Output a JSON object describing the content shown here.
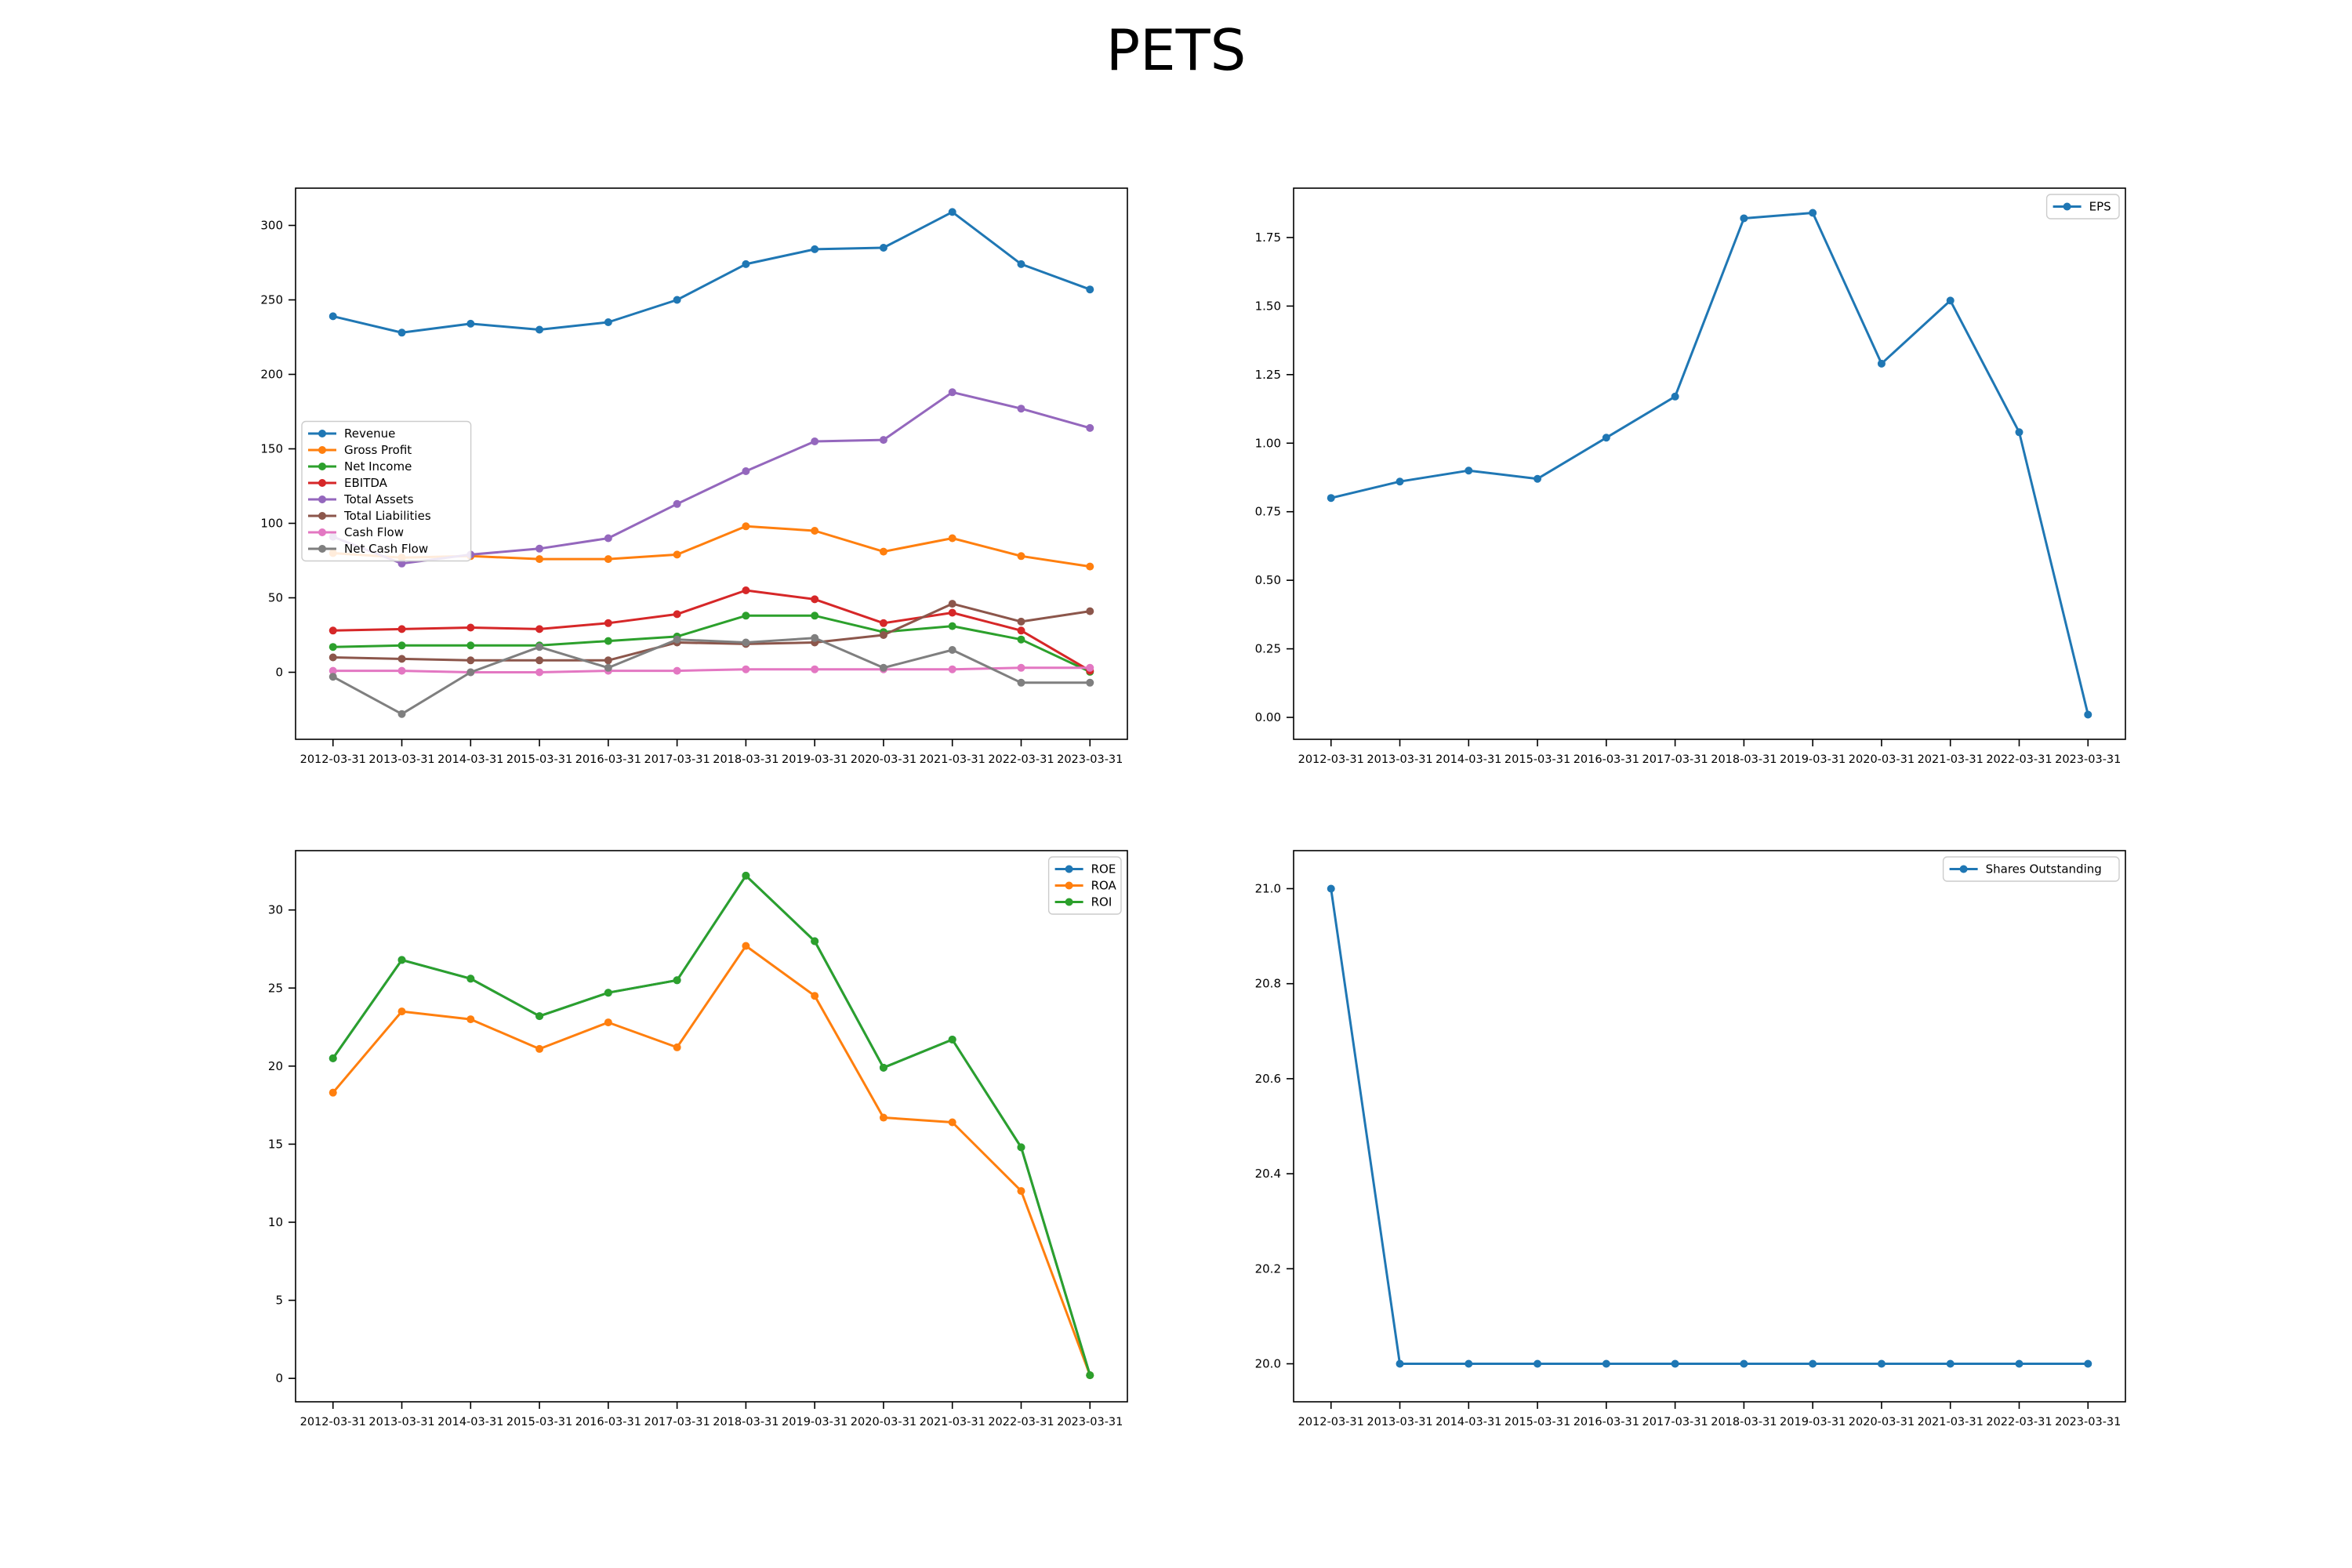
{
  "title": "PETS",
  "chart_data": [
    {
      "type": "line",
      "categories": [
        "2012-03-31",
        "2013-03-31",
        "2014-03-31",
        "2015-03-31",
        "2016-03-31",
        "2017-03-31",
        "2018-03-31",
        "2019-03-31",
        "2020-03-31",
        "2021-03-31",
        "2022-03-31",
        "2023-03-31"
      ],
      "ylim": [
        -45,
        325
      ],
      "yticks": [
        0,
        50,
        100,
        150,
        200,
        250,
        300
      ],
      "legend": "center-left",
      "series": [
        {
          "name": "Revenue",
          "color": "#1f77b4",
          "values": [
            239,
            228,
            234,
            230,
            235,
            250,
            274,
            284,
            285,
            309,
            274,
            257
          ]
        },
        {
          "name": "Gross Profit",
          "color": "#ff7f0e",
          "values": [
            80,
            77,
            78,
            76,
            76,
            79,
            98,
            95,
            81,
            90,
            78,
            71
          ]
        },
        {
          "name": "Net Income",
          "color": "#2ca02c",
          "values": [
            17,
            18,
            18,
            18,
            21,
            24,
            38,
            38,
            27,
            31,
            22,
            0.3
          ]
        },
        {
          "name": "EBITDA",
          "color": "#d62728",
          "values": [
            28,
            29,
            30,
            29,
            33,
            39,
            55,
            49,
            33,
            40,
            28,
            1
          ]
        },
        {
          "name": "Total Assets",
          "color": "#9467bd",
          "values": [
            91,
            73,
            79,
            83,
            90,
            113,
            135,
            155,
            156,
            188,
            177,
            164
          ]
        },
        {
          "name": "Total Liabilities",
          "color": "#8c564b",
          "values": [
            10,
            9,
            8,
            8,
            8,
            20,
            19,
            20,
            25,
            46,
            34,
            41
          ]
        },
        {
          "name": "Cash Flow",
          "color": "#e377c2",
          "values": [
            1,
            1,
            0,
            0,
            1,
            1,
            2,
            2,
            2,
            2,
            3,
            3
          ]
        },
        {
          "name": "Net Cash Flow",
          "color": "#7f7f7f",
          "values": [
            -3,
            -28,
            0,
            17,
            3,
            22,
            20,
            23,
            3,
            15,
            -7,
            -7
          ]
        }
      ]
    },
    {
      "type": "line",
      "categories": [
        "2012-03-31",
        "2013-03-31",
        "2014-03-31",
        "2015-03-31",
        "2016-03-31",
        "2017-03-31",
        "2018-03-31",
        "2019-03-31",
        "2020-03-31",
        "2021-03-31",
        "2022-03-31",
        "2023-03-31"
      ],
      "ylim": [
        -0.08,
        1.93
      ],
      "yticks": [
        0,
        0.25,
        0.5,
        0.75,
        1.0,
        1.25,
        1.5,
        1.75
      ],
      "tick_format": 2,
      "legend": "top-right",
      "series": [
        {
          "name": "EPS",
          "color": "#1f77b4",
          "values": [
            0.8,
            0.86,
            0.9,
            0.87,
            1.02,
            1.17,
            1.82,
            1.84,
            1.29,
            1.52,
            1.04,
            0.01
          ]
        }
      ]
    },
    {
      "type": "line",
      "categories": [
        "2012-03-31",
        "2013-03-31",
        "2014-03-31",
        "2015-03-31",
        "2016-03-31",
        "2017-03-31",
        "2018-03-31",
        "2019-03-31",
        "2020-03-31",
        "2021-03-31",
        "2022-03-31",
        "2023-03-31"
      ],
      "ylim": [
        -1.5,
        33.8
      ],
      "yticks": [
        0,
        5,
        10,
        15,
        20,
        25,
        30
      ],
      "legend": "top-right",
      "series": [
        {
          "name": "ROE",
          "color": "#1f77b4",
          "values": [
            20.5,
            26.8,
            25.6,
            23.2,
            24.7,
            25.5,
            32.2,
            28.0,
            19.9,
            21.7,
            14.8,
            0.2
          ]
        },
        {
          "name": "ROA",
          "color": "#ff7f0e",
          "values": [
            18.3,
            23.5,
            23.0,
            21.1,
            22.8,
            21.2,
            27.7,
            24.5,
            16.7,
            16.4,
            12.0,
            0.2
          ]
        },
        {
          "name": "ROI",
          "color": "#2ca02c",
          "values": [
            20.5,
            26.8,
            25.6,
            23.2,
            24.7,
            25.5,
            32.2,
            28.0,
            19.9,
            21.7,
            14.8,
            0.2
          ]
        }
      ]
    },
    {
      "type": "line",
      "categories": [
        "2012-03-31",
        "2013-03-31",
        "2014-03-31",
        "2015-03-31",
        "2016-03-31",
        "2017-03-31",
        "2018-03-31",
        "2019-03-31",
        "2020-03-31",
        "2021-03-31",
        "2022-03-31",
        "2023-03-31"
      ],
      "ylim": [
        19.92,
        21.08
      ],
      "yticks": [
        20.0,
        20.2,
        20.4,
        20.6,
        20.8,
        21.0
      ],
      "tick_format": 1,
      "legend": "top-right",
      "series": [
        {
          "name": "Shares Outstanding",
          "color": "#1f77b4",
          "values": [
            21,
            20,
            20,
            20,
            20,
            20,
            20,
            20,
            20,
            20,
            20,
            20
          ]
        }
      ]
    }
  ]
}
